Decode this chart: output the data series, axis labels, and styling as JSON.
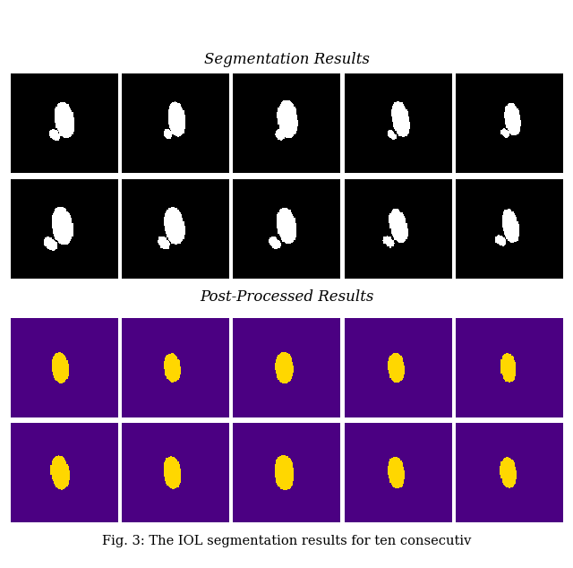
{
  "title_seg": "Segmentation Results",
  "title_post": "Post-Processed Results",
  "caption": "Fig. 3: The IOL segmentation results for ten consecutiv",
  "n_cols": 5,
  "bg_black": [
    0,
    0,
    0
  ],
  "bg_purple": [
    75,
    0,
    130
  ],
  "color_white": [
    255,
    255,
    255
  ],
  "color_yellow": [
    255,
    215,
    0
  ],
  "fig_bg": "#FFFFFF",
  "title_fontsize": 12,
  "caption_fontsize": 10.5,
  "img_size": 100
}
